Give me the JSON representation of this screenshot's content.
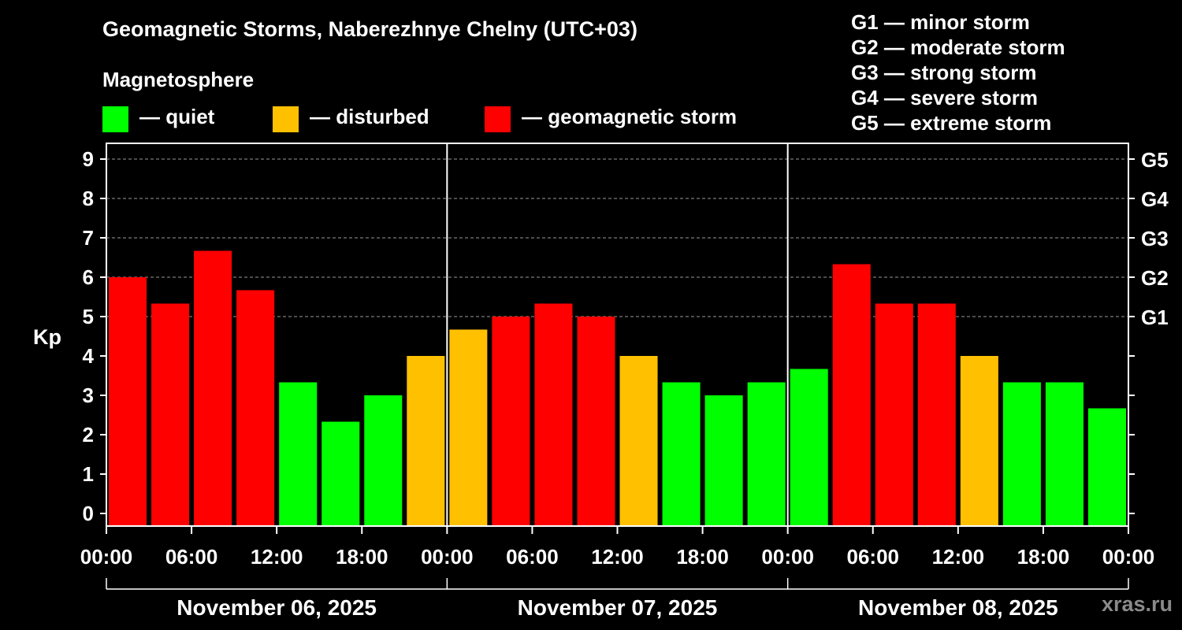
{
  "title": "Geomagnetic Storms, Naberezhnye Chelny (UTC+03)",
  "magnetosphere": {
    "title": "Magnetosphere",
    "items": [
      {
        "label": "— quiet",
        "color": "#00ff00"
      },
      {
        "label": "— disturbed",
        "color": "#ffc000"
      },
      {
        "label": "— geomagnetic storm",
        "color": "#ff0000"
      }
    ]
  },
  "storm_scale": [
    "G1 — minor storm",
    "G2 — moderate storm",
    "G3 — strong storm",
    "G4 — severe storm",
    "G5 — extreme storm"
  ],
  "watermark": "xras.ru",
  "chart_data": {
    "type": "bar",
    "ylabel": "Kp",
    "ylim": [
      0,
      9
    ],
    "yticks": [
      0,
      1,
      2,
      3,
      4,
      5,
      6,
      7,
      8,
      9
    ],
    "right_axis": [
      {
        "value": 5,
        "label": "G1"
      },
      {
        "value": 6,
        "label": "G2"
      },
      {
        "value": 7,
        "label": "G3"
      },
      {
        "value": 8,
        "label": "G4"
      },
      {
        "value": 9,
        "label": "G5"
      }
    ],
    "grid": "horizontal dashed",
    "x_tick_labels": [
      "00:00",
      "06:00",
      "12:00",
      "18:00",
      "00:00",
      "06:00",
      "12:00",
      "18:00",
      "00:00",
      "06:00",
      "12:00",
      "18:00",
      "00:00"
    ],
    "days": [
      "November 06, 2025",
      "November 07, 2025",
      "November 08, 2025"
    ],
    "colors": {
      "quiet": "#00ff00",
      "disturbed": "#ffc000",
      "storm": "#ff0000"
    },
    "values": [
      6.0,
      5.33,
      6.67,
      5.67,
      3.33,
      2.33,
      3.0,
      4.0,
      4.67,
      5.0,
      5.33,
      5.0,
      4.0,
      3.33,
      3.0,
      3.33,
      3.67,
      6.33,
      5.33,
      5.33,
      4.0,
      3.33,
      3.33,
      2.67
    ]
  }
}
